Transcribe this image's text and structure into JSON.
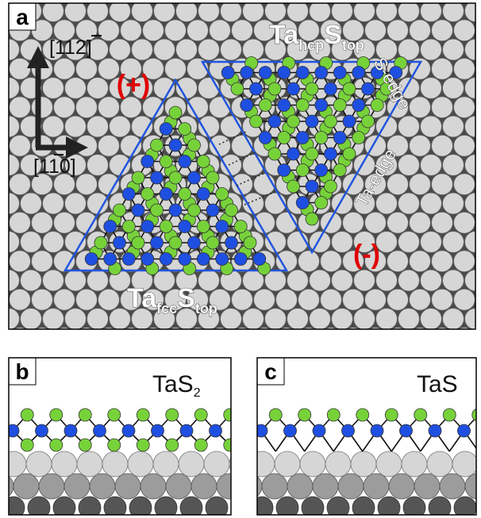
{
  "panels": {
    "a": {
      "label": "a"
    },
    "b": {
      "label": "b",
      "title_main": "TaS",
      "title_sub": "2"
    },
    "c": {
      "label": "c",
      "title_main": "TaS"
    }
  },
  "directions": {
    "vertical": {
      "open": "[11",
      "digit": "2",
      "close": "]"
    },
    "horizontal": {
      "open": "[1",
      "digit": "1",
      "close": "0]"
    }
  },
  "islands": {
    "left": {
      "sign": "(+)",
      "main1": "Ta",
      "sub1": "fcc",
      "main2": "S",
      "sub2": "top"
    },
    "right": {
      "sign": "(-)",
      "main1": "Ta",
      "sub1": "hcp",
      "main2": "S",
      "sub2": "top"
    }
  },
  "edge_labels": {
    "s_edge": "S-edge",
    "ta_edge": "Ta-edge"
  },
  "colors": {
    "ta_atom": "#1f4fe0",
    "s_atom": "#77d23a",
    "substrate_top": "#d6d6d6",
    "substrate_mid": "#9c9c9c",
    "substrate_deep": "#555555",
    "island_outline": "#2255dd",
    "sign": "#e00000"
  }
}
